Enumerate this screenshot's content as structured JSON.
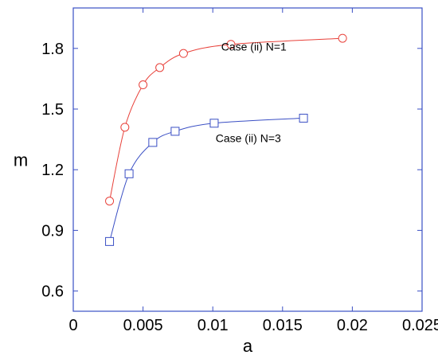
{
  "chart_data": {
    "type": "line",
    "title": "",
    "xlabel": "a",
    "ylabel": "m",
    "xlim": [
      0,
      0.025
    ],
    "ylim": [
      0.5,
      2.0
    ],
    "xticks": [
      0,
      0.005,
      0.01,
      0.015,
      0.02,
      0.025
    ],
    "xtick_labels": [
      "0",
      "0.005",
      "0.01",
      "0.015",
      "0.02",
      "0.025"
    ],
    "yticks": [
      0.6,
      0.9,
      1.2,
      1.5,
      1.8
    ],
    "ytick_labels": [
      "0.6",
      "0.9",
      "1.2",
      "1.5",
      "1.8"
    ],
    "grid": false,
    "frame_color": "#3a4fc4",
    "series": [
      {
        "label": "Case (ii) N=1",
        "color": "#e8413a",
        "marker": "circle",
        "x": [
          0.0026,
          0.0037,
          0.005,
          0.0062,
          0.0079,
          0.0113,
          0.0193
        ],
        "y": [
          1.045,
          1.41,
          1.62,
          1.705,
          1.775,
          1.82,
          1.85
        ]
      },
      {
        "label": "Case (ii) N=3",
        "color": "#3a4fc4",
        "marker": "square",
        "x": [
          0.0026,
          0.004,
          0.0057,
          0.0073,
          0.0101,
          0.0165
        ],
        "y": [
          0.845,
          1.18,
          1.335,
          1.39,
          1.43,
          1.455
        ]
      }
    ]
  }
}
